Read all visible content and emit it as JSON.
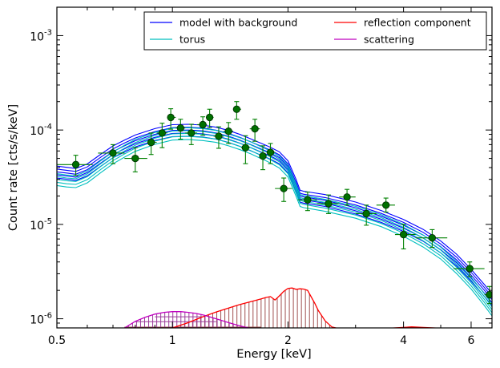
{
  "chart_data": {
    "type": "line",
    "xlabel": "Energy [keV]",
    "ylabel": "Count rate [cts/s/keV]",
    "xscale": "log",
    "yscale": "log",
    "xlim": [
      0.5,
      6.8
    ],
    "ylim": [
      8e-07,
      0.002
    ],
    "x_ticks": [
      {
        "value": 0.5,
        "label": "0.5"
      },
      {
        "value": 1,
        "label": "1"
      },
      {
        "value": 2,
        "label": "2"
      },
      {
        "value": 4,
        "label": "4"
      },
      {
        "value": 6,
        "label": "6"
      }
    ],
    "y_ticks": [
      {
        "value": 1e-06,
        "base": "10",
        "exp": "-6"
      },
      {
        "value": 1e-05,
        "base": "10",
        "exp": "-5"
      },
      {
        "value": 0.0001,
        "base": "10",
        "exp": "-4"
      },
      {
        "value": 0.001,
        "base": "10",
        "exp": "-3"
      }
    ],
    "grid": false,
    "legend_position": "top-right",
    "legend": [
      {
        "name": "model with background",
        "color": "#0000ff"
      },
      {
        "name": "reflection component",
        "color": "#ff0000"
      },
      {
        "name": "torus",
        "color": "#00bfbf"
      },
      {
        "name": "scattering",
        "color": "#bf00bf"
      }
    ],
    "series": [
      {
        "name": "model with background",
        "color": "#0000ff",
        "style": "band",
        "x": [
          0.5,
          0.53,
          0.56,
          0.6,
          0.65,
          0.7,
          0.75,
          0.8,
          0.9,
          1.0,
          1.1,
          1.2,
          1.3,
          1.4,
          1.5,
          1.6,
          1.7,
          1.75,
          1.8,
          1.9,
          2.0,
          2.1,
          2.15,
          2.2,
          2.5,
          3.0,
          3.5,
          4.0,
          4.5,
          5.0,
          5.5,
          6.0,
          6.5,
          6.8
        ],
        "y": [
          3.6e-05,
          3.5e-05,
          3.4e-05,
          3.8e-05,
          4.8e-05,
          5.9e-05,
          6.8e-05,
          7.7e-05,
          9e-05,
          9.9e-05,
          0.0001,
          9.8e-05,
          9.3e-05,
          8.6e-05,
          7.8e-05,
          7e-05,
          6.3e-05,
          6e-05,
          5.7e-05,
          5.1e-05,
          4.1e-05,
          2.6e-05,
          2e-05,
          1.95e-05,
          1.8e-05,
          1.5e-05,
          1.22e-05,
          9.8e-06,
          7.7e-06,
          5.8e-06,
          4.2e-06,
          2.9e-06,
          2e-06,
          1.6e-06
        ]
      },
      {
        "name": "torus",
        "color": "#00bfbf",
        "style": "band",
        "x": [
          0.5,
          0.53,
          0.56,
          0.6,
          0.65,
          0.7,
          0.75,
          0.8,
          0.9,
          1.0,
          1.1,
          1.2,
          1.3,
          1.4,
          1.5,
          1.6,
          1.7,
          1.75,
          1.8,
          1.9,
          2.0,
          2.1,
          2.15,
          2.2,
          2.5,
          3.0,
          3.5,
          4.0,
          4.5,
          5.0,
          5.5,
          6.0,
          6.5,
          6.8
        ],
        "y": [
          3e-05,
          2.9e-05,
          2.85e-05,
          3.2e-05,
          4.1e-05,
          5.1e-05,
          6e-05,
          6.9e-05,
          8.2e-05,
          9.1e-05,
          9.2e-05,
          9e-05,
          8.6e-05,
          7.9e-05,
          7.2e-05,
          6.5e-05,
          5.8e-05,
          5.5e-05,
          5.2e-05,
          4.6e-05,
          3.7e-05,
          2.3e-05,
          1.8e-05,
          1.75e-05,
          1.6e-05,
          1.35e-05,
          1.1e-05,
          8.7e-06,
          6.7e-06,
          5e-06,
          3.5e-06,
          2.4e-06,
          1.6e-06,
          1.25e-06
        ]
      },
      {
        "name": "reflection component",
        "color": "#ff0000",
        "style": "line",
        "x": [
          1.0,
          1.1,
          1.2,
          1.3,
          1.4,
          1.5,
          1.6,
          1.7,
          1.75,
          1.8,
          1.85,
          1.9,
          1.95,
          2.0,
          2.05,
          2.1,
          2.15,
          2.2,
          2.25,
          2.3,
          2.35,
          2.4,
          2.5,
          2.6,
          2.7
        ],
        "y": [
          8e-07,
          9.1e-07,
          1.05e-06,
          1.18e-06,
          1.3e-06,
          1.42e-06,
          1.52e-06,
          1.62e-06,
          1.68e-06,
          1.72e-06,
          1.58e-06,
          1.75e-06,
          1.95e-06,
          2.1e-06,
          2.12e-06,
          2.05e-06,
          2.08e-06,
          2.06e-06,
          2e-06,
          1.7e-06,
          1.45e-06,
          1.22e-06,
          9.5e-07,
          8.2e-07,
          7.9e-07
        ]
      },
      {
        "name": "reflection component (high energy)",
        "color": "#ff0000",
        "style": "line",
        "x": [
          3.6,
          3.9,
          4.2,
          4.5,
          4.8,
          5.1
        ],
        "y": [
          7.9e-07,
          8.05e-07,
          8.2e-07,
          8.1e-07,
          8e-07,
          7.9e-07
        ]
      },
      {
        "name": "scattering",
        "color": "#bf00bf",
        "style": "line",
        "x": [
          0.75,
          0.8,
          0.85,
          0.9,
          0.95,
          1.0,
          1.05,
          1.1,
          1.15,
          1.2,
          1.3,
          1.4,
          1.5,
          1.6
        ],
        "y": [
          8e-07,
          9.4e-07,
          1.04e-06,
          1.12e-06,
          1.17e-06,
          1.19e-06,
          1.19e-06,
          1.17e-06,
          1.14e-06,
          1.1e-06,
          1e-06,
          9.1e-07,
          8.4e-07,
          7.9e-07
        ]
      }
    ],
    "data_points": [
      {
        "x": 0.56,
        "xerr": [
          0.5,
          0.62
        ],
        "y": 4.3e-05,
        "yerr": [
          3.3e-05,
          5.4e-05
        ]
      },
      {
        "x": 0.7,
        "xerr": [
          0.64,
          0.75
        ],
        "y": 5.7e-05,
        "yerr": [
          4.4e-05,
          7e-05
        ]
      },
      {
        "x": 0.8,
        "xerr": [
          0.75,
          0.86
        ],
        "y": 5e-05,
        "yerr": [
          3.6e-05,
          6.5e-05
        ]
      },
      {
        "x": 0.88,
        "xerr": [
          0.86,
          0.91
        ],
        "y": 7.4e-05,
        "yerr": [
          5.5e-05,
          9.3e-05
        ]
      },
      {
        "x": 0.94,
        "xerr": [
          0.91,
          0.97
        ],
        "y": 9.3e-05,
        "yerr": [
          6.5e-05,
          0.000118
        ]
      },
      {
        "x": 0.99,
        "xerr": [
          0.97,
          1.02
        ],
        "y": 0.000136,
        "yerr": [
          0.000102,
          0.000168
        ]
      },
      {
        "x": 1.05,
        "xerr": [
          1.02,
          1.08
        ],
        "y": 0.000105,
        "yerr": [
          8e-05,
          0.00013
        ]
      },
      {
        "x": 1.12,
        "xerr": [
          1.08,
          1.16
        ],
        "y": 9.3e-05,
        "yerr": [
          7e-05,
          0.000115
        ]
      },
      {
        "x": 1.2,
        "xerr": [
          1.16,
          1.23
        ],
        "y": 0.000114,
        "yerr": [
          8.8e-05,
          0.000138
        ]
      },
      {
        "x": 1.25,
        "xerr": [
          1.23,
          1.28
        ],
        "y": 0.000136,
        "yerr": [
          0.000106,
          0.000166
        ]
      },
      {
        "x": 1.32,
        "xerr": [
          1.28,
          1.36
        ],
        "y": 8.6e-05,
        "yerr": [
          6.4e-05,
          0.000108
        ]
      },
      {
        "x": 1.4,
        "xerr": [
          1.36,
          1.44
        ],
        "y": 9.7e-05,
        "yerr": [
          7.2e-05,
          0.00012
        ]
      },
      {
        "x": 1.47,
        "xerr": [
          1.44,
          1.51
        ],
        "y": 0.000166,
        "yerr": [
          0.00013,
          0.0002
        ]
      },
      {
        "x": 1.55,
        "xerr": [
          1.51,
          1.59
        ],
        "y": 6.5e-05,
        "yerr": [
          4.4e-05,
          8.7e-05
        ]
      },
      {
        "x": 1.64,
        "xerr": [
          1.59,
          1.69
        ],
        "y": 0.000103,
        "yerr": [
          7.6e-05,
          0.00013
        ]
      },
      {
        "x": 1.72,
        "xerr": [
          1.69,
          1.76
        ],
        "y": 5.3e-05,
        "yerr": [
          3.8e-05,
          6.8e-05
        ]
      },
      {
        "x": 1.8,
        "xerr": [
          1.76,
          1.85
        ],
        "y": 5.8e-05,
        "yerr": [
          4.4e-05,
          7.2e-05
        ]
      },
      {
        "x": 1.95,
        "xerr": [
          1.85,
          2.05
        ],
        "y": 2.4e-05,
        "yerr": [
          1.75e-05,
          3.1e-05
        ]
      },
      {
        "x": 2.25,
        "xerr": [
          2.12,
          2.38
        ],
        "y": 1.82e-05,
        "yerr": [
          1.4e-05,
          2.2e-05
        ]
      },
      {
        "x": 2.55,
        "xerr": [
          2.38,
          2.72
        ],
        "y": 1.66e-05,
        "yerr": [
          1.3e-05,
          2.05e-05
        ]
      },
      {
        "x": 2.85,
        "xerr": [
          2.72,
          3.0
        ],
        "y": 1.95e-05,
        "yerr": [
          1.6e-05,
          2.35e-05
        ]
      },
      {
        "x": 3.2,
        "xerr": [
          3.0,
          3.4
        ],
        "y": 1.3e-05,
        "yerr": [
          9.8e-06,
          1.6e-05
        ]
      },
      {
        "x": 3.6,
        "xerr": [
          3.4,
          3.8
        ],
        "y": 1.6e-05,
        "yerr": [
          1.35e-05,
          1.9e-05
        ]
      },
      {
        "x": 4.0,
        "xerr": [
          3.8,
          4.3
        ],
        "y": 7.8e-06,
        "yerr": [
          5.5e-06,
          1e-05
        ]
      },
      {
        "x": 4.75,
        "xerr": [
          4.3,
          5.2
        ],
        "y": 7.2e-06,
        "yerr": [
          5.7e-06,
          8.8e-06
        ]
      },
      {
        "x": 5.95,
        "xerr": [
          5.4,
          6.5
        ],
        "y": 3.4e-06,
        "yerr": [
          2.8e-06,
          4e-06
        ]
      },
      {
        "x": 6.7,
        "xerr": [
          6.5,
          6.8
        ],
        "y": 1.8e-06,
        "yerr": [
          1.45e-06,
          2.2e-06
        ]
      }
    ],
    "data_points_color": "#008000"
  }
}
